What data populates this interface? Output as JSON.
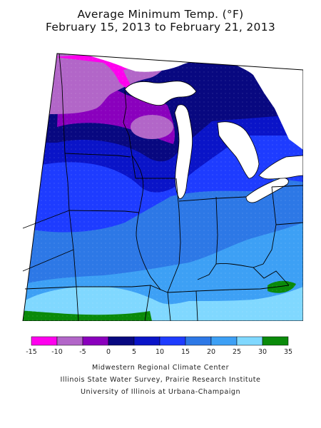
{
  "title_line1": "Average Minimum Temp. (°F)",
  "title_line2": "February 15, 2013 to February 21, 2013",
  "legend": {
    "ticks": [
      "-15",
      "-10",
      "-5",
      "0",
      "5",
      "10",
      "15",
      "20",
      "25",
      "30",
      "35"
    ],
    "colors": [
      "#ff00ee",
      "#b266c8",
      "#8a00bd",
      "#080880",
      "#0a14c8",
      "#1e3cff",
      "#2d78e6",
      "#3da0f5",
      "#80d8ff",
      "#0a8a0a"
    ]
  },
  "credits": {
    "line1": "Midwestern Regional Climate Center",
    "line2": "Illinois State Water Survey, Prairie Research Institute",
    "line3": "University of Illinois at Urbana-Champaign"
  }
}
